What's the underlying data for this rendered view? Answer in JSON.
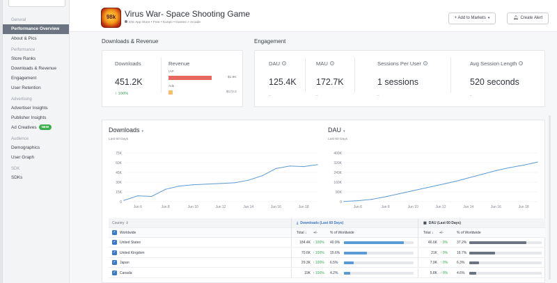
{
  "sidebar": {
    "sections": [
      {
        "title": "General",
        "items": [
          {
            "label": "Performance Overview",
            "active": true
          },
          {
            "label": "About & Pics"
          }
        ]
      },
      {
        "title": "Performance",
        "items": [
          {
            "label": "Store Ranks"
          },
          {
            "label": "Downloads & Revenue"
          },
          {
            "label": "Engagement"
          },
          {
            "label": "User Retention"
          }
        ]
      },
      {
        "title": "Advertising",
        "items": [
          {
            "label": "Advertiser Insights"
          },
          {
            "label": "Publisher Insights"
          },
          {
            "label": "Ad Creatives",
            "badge": "NEW"
          }
        ]
      },
      {
        "title": "Audience",
        "items": [
          {
            "label": "Demographics"
          },
          {
            "label": "User Graph"
          }
        ]
      },
      {
        "title": "SDK",
        "items": [
          {
            "label": "SDKs"
          }
        ]
      }
    ]
  },
  "app": {
    "icon_text": "98k",
    "title": "Virus War- Space Shooting Game",
    "meta": "iOS App Store  •  Free  •  Kunpo  •  Games > Arcade",
    "add_to_markets": "+ Add to Markets",
    "create_alert": "Create Alert"
  },
  "downloads_revenue": {
    "section_title": "Downloads & Revenue",
    "downloads_label": "Downloads",
    "downloads_value": "451.2K",
    "downloads_delta": "↑ 100%",
    "revenue_label": "Revenue",
    "iap_label": "IAP",
    "iap_value": "$1.8K",
    "ads_label": "Ads",
    "ads_value": "$173.3"
  },
  "engagement": {
    "section_title": "Engagement",
    "metrics": [
      {
        "label": "DAU",
        "value": "125.4K",
        "sub": "–"
      },
      {
        "label": "MAU",
        "value": "172.7K",
        "sub": "–"
      },
      {
        "label": "Sessions Per User",
        "value": "1 sessions",
        "sub": "–"
      },
      {
        "label": "Avg Session Length",
        "value": "520 seconds",
        "sub": "–"
      }
    ]
  },
  "chart_data": [
    {
      "type": "line",
      "title": "Downloads",
      "subtitle": "Last 60 Days",
      "x_ticks": [
        "Jun 6",
        "Jun 8",
        "Jun 10",
        "Jun 12",
        "Jun 14",
        "Jun 16",
        "Jun 18"
      ],
      "y_ticks": [
        "0",
        "15K",
        "30K",
        "45K",
        "60K",
        "75K"
      ],
      "ylim": [
        0,
        75000
      ],
      "x": [
        5,
        6,
        7,
        8,
        9,
        10,
        11,
        12,
        13,
        14,
        15,
        16,
        17,
        18,
        19
      ],
      "values": [
        2000,
        9000,
        8000,
        19000,
        24000,
        26000,
        27000,
        28000,
        29000,
        33000,
        40000,
        51000,
        55000,
        54000,
        57000
      ],
      "color": "#5b9bd5"
    },
    {
      "type": "line",
      "title": "DAU",
      "subtitle": "Last 60 Days",
      "x_ticks": [
        "Jun 6",
        "Jun 8",
        "Jun 10",
        "Jun 12",
        "Jun 14",
        "Jun 16",
        "Jun 18"
      ],
      "y_ticks": [
        "0",
        "80K",
        "160K",
        "240K",
        "320K",
        "400K"
      ],
      "ylim": [
        0,
        400000
      ],
      "x": [
        5,
        6,
        7,
        8,
        9,
        10,
        11,
        12,
        13,
        14,
        15,
        16,
        17,
        18,
        19
      ],
      "values": [
        2000,
        8000,
        18000,
        40000,
        65000,
        90000,
        115000,
        140000,
        165000,
        195000,
        225000,
        255000,
        280000,
        300000,
        325000
      ],
      "color": "#5b9bd5"
    }
  ],
  "table": {
    "country_header": "Country",
    "downloads_header": "Downloads (Last 60 Days)",
    "dau_header": "DAU (Last 60 Days)",
    "subheaders": {
      "worldwide": "Worldwide",
      "total": "Total ↓",
      "change": "+/-",
      "pct": "% of Worldwide"
    },
    "rows": [
      {
        "country": "United States",
        "dl_total": "184.4K",
        "dl_change": "↑ 100%",
        "dl_pct": "40.9%",
        "dl_frac": 0.409,
        "dau_total": "46.6K",
        "dau_change": "↑ 0%",
        "dau_pct": "37.2%",
        "dau_frac": 0.372
      },
      {
        "country": "United Kingdom",
        "dl_total": "70.6K",
        "dl_change": "↑ 100%",
        "dl_pct": "15.6%",
        "dl_frac": 0.156,
        "dau_total": "21K",
        "dau_change": "↑ 0%",
        "dau_pct": "16.7%",
        "dau_frac": 0.167
      },
      {
        "country": "Japan",
        "dl_total": "29.3K",
        "dl_change": "↑ 100%",
        "dl_pct": "6.5%",
        "dl_frac": 0.065,
        "dau_total": "7.9K",
        "dau_change": "↑ 0%",
        "dau_pct": "6.3%",
        "dau_frac": 0.063
      },
      {
        "country": "Canada",
        "dl_total": "19K",
        "dl_change": "↑ 100%",
        "dl_pct": "4.2%",
        "dl_frac": 0.042,
        "dau_total": "5.8K",
        "dau_change": "↑ 0%",
        "dau_pct": "4.6%",
        "dau_frac": 0.046
      }
    ]
  },
  "colors": {
    "accent": "#5b9bd5",
    "iap_bar": "#e8685f",
    "ads_bar": "#f6be6a",
    "positive": "#34a853",
    "dl_bar": "#5b9bd5",
    "dau_bar": "#6b7480"
  }
}
